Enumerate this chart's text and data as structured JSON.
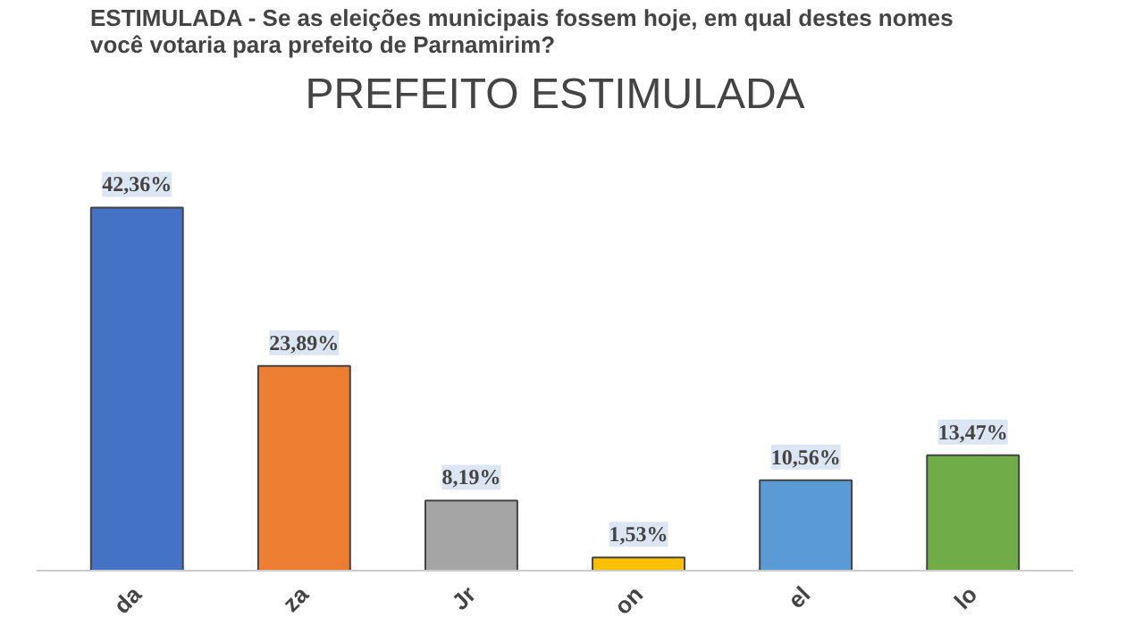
{
  "chart_data": {
    "type": "bar",
    "subtitle": "ESTIMULADA - Se as eleições municipais fossem hoje, em qual destes nomes você votaria para prefeito de Parnamirim?",
    "title": "PREFEITO ESTIMULADA",
    "categories": [
      "da",
      "za",
      "Jr",
      "on",
      "el",
      "lo"
    ],
    "values": [
      42.36,
      23.89,
      8.19,
      1.53,
      10.56,
      13.47
    ],
    "value_labels": [
      "42,36%",
      "23,89%",
      "8,19%",
      "1,53%",
      "10,56%",
      "13,47%"
    ],
    "colors": [
      "#4472c4",
      "#ed7d31",
      "#a5a5a5",
      "#ffc000",
      "#5b9bd5",
      "#70ad47"
    ]
  }
}
